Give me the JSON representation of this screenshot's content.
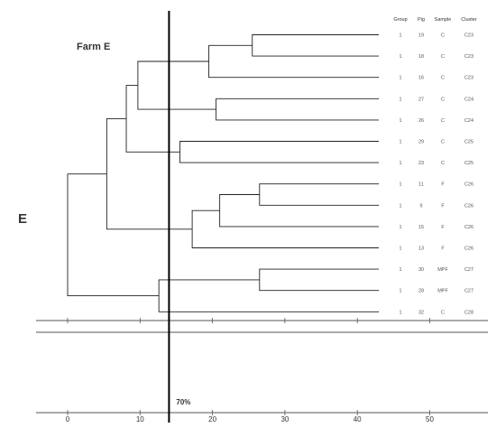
{
  "panel_letter": "E",
  "farm_label": "Farm E",
  "threshold_label": "70%",
  "axis_ticks": [
    "0",
    "10",
    "20",
    "30",
    "40",
    "50"
  ],
  "columns": [
    "Group",
    "Pig",
    "Sample",
    "Cluster"
  ],
  "rows": [
    {
      "group": "1",
      "pig": "19",
      "sample": "C",
      "cluster": "C23"
    },
    {
      "group": "1",
      "pig": "18",
      "sample": "C",
      "cluster": "C23"
    },
    {
      "group": "1",
      "pig": "16",
      "sample": "C",
      "cluster": "C23"
    },
    {
      "group": "1",
      "pig": "27",
      "sample": "C",
      "cluster": "C24"
    },
    {
      "group": "1",
      "pig": "26",
      "sample": "C",
      "cluster": "C24"
    },
    {
      "group": "1",
      "pig": "29",
      "sample": "C",
      "cluster": "C25"
    },
    {
      "group": "1",
      "pig": "23",
      "sample": "C",
      "cluster": "C25"
    },
    {
      "group": "1",
      "pig": "11",
      "sample": "F",
      "cluster": "C26"
    },
    {
      "group": "1",
      "pig": "9",
      "sample": "F",
      "cluster": "C26"
    },
    {
      "group": "1",
      "pig": "15",
      "sample": "F",
      "cluster": "C26"
    },
    {
      "group": "1",
      "pig": "13",
      "sample": "F",
      "cluster": "C26"
    },
    {
      "group": "1",
      "pig": "30",
      "sample": "MPF",
      "cluster": "C27"
    },
    {
      "group": "1",
      "pig": "28",
      "sample": "MPF",
      "cluster": "C27"
    },
    {
      "group": "1",
      "pig": "32",
      "sample": "C",
      "cluster": "C28"
    }
  ],
  "tree": [
    [
      0,
      1,
      25.5
    ],
    [
      14,
      2,
      19.5
    ],
    [
      3,
      4,
      20.5
    ],
    [
      15,
      16,
      9.7
    ],
    [
      5,
      6,
      15.5
    ],
    [
      17,
      18,
      8.1
    ],
    [
      7,
      8,
      26.5
    ],
    [
      20,
      9,
      21
    ],
    [
      21,
      10,
      17.2
    ],
    [
      19,
      22,
      5.4
    ],
    [
      11,
      12,
      26.5
    ],
    [
      24,
      13,
      12.6
    ],
    [
      23,
      25,
      0
    ]
  ],
  "threshold_value": 14
}
